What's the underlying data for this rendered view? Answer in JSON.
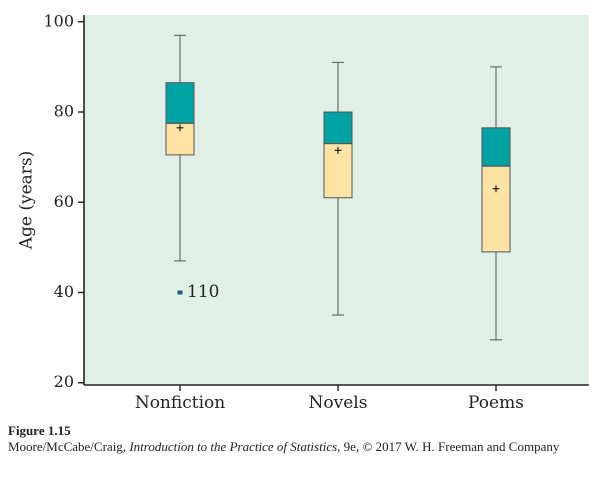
{
  "chart_data": {
    "type": "box",
    "categories": [
      "Nonfiction",
      "Novels",
      "Poems"
    ],
    "ylabel": "Age (years)",
    "ylim": [
      19.5,
      101.5
    ],
    "yticks": [
      20,
      40,
      60,
      80,
      100
    ],
    "boxes": [
      {
        "category": "Nonfiction",
        "whisker_low": 47,
        "q1": 70.5,
        "median": 77.5,
        "q3": 86.5,
        "whisker_high": 97,
        "mean": 76.5,
        "outliers": [
          {
            "value": 40,
            "label": "110"
          }
        ]
      },
      {
        "category": "Novels",
        "whisker_low": 35,
        "q1": 61,
        "median": 73,
        "q3": 80,
        "whisker_high": 91,
        "mean": 71.5,
        "outliers": []
      },
      {
        "category": "Poems",
        "whisker_low": 29.5,
        "q1": 49,
        "median": 68,
        "q3": 76.5,
        "whisker_high": 90,
        "mean": 63,
        "outliers": []
      }
    ],
    "colors": {
      "plot_bg": "#e1f0e6",
      "upper_box": "#00a3a3",
      "lower_box": "#fde3a5",
      "outline": "#555555",
      "outlier": "#1a5f80"
    },
    "grid": false
  },
  "caption": {
    "figure_number": "Figure 1.15",
    "credit_authors": "Moore/McCabe/Craig, ",
    "credit_title": "Introduction to the Practice of Statistics",
    "credit_rest": ", 9e, © 2017 W. H. Freeman and Company"
  }
}
